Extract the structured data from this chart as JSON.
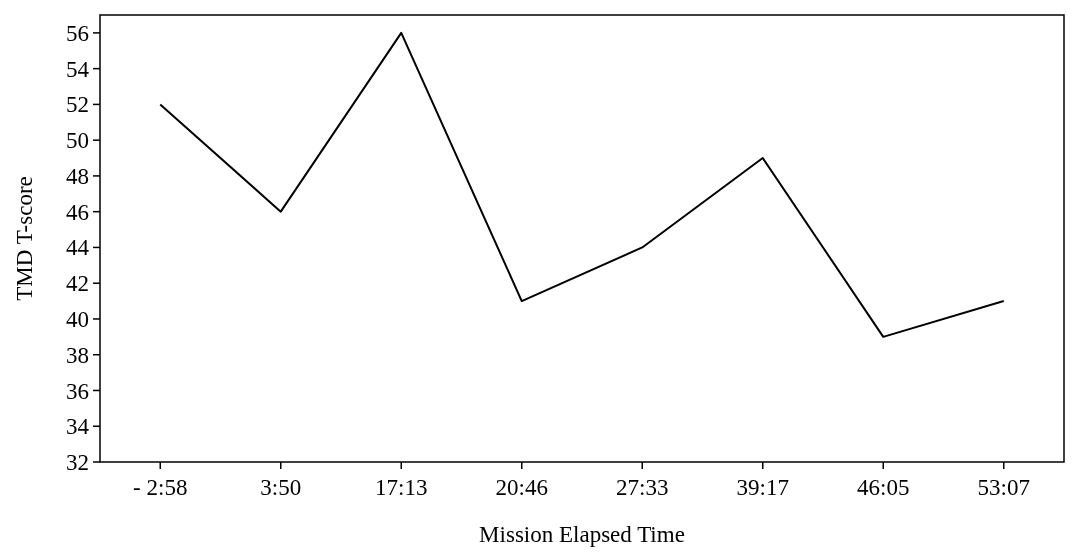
{
  "chart_data": {
    "type": "line",
    "xlabel": "Mission Elapsed Time",
    "ylabel": "TMD T-score",
    "categories": [
      "- 2:58",
      "3:50",
      "17:13",
      "20:46",
      "27:33",
      "39:17",
      "46:05",
      "53:07"
    ],
    "series": [
      {
        "color": "#000000",
        "values": [
          52,
          46,
          56,
          41,
          44,
          49,
          39,
          41
        ]
      }
    ],
    "ylim": [
      32,
      57
    ],
    "yticks": [
      32,
      34,
      36,
      38,
      40,
      42,
      44,
      46,
      48,
      50,
      52,
      54,
      56
    ],
    "grid": false,
    "marker": "none",
    "line_style": "solid"
  }
}
